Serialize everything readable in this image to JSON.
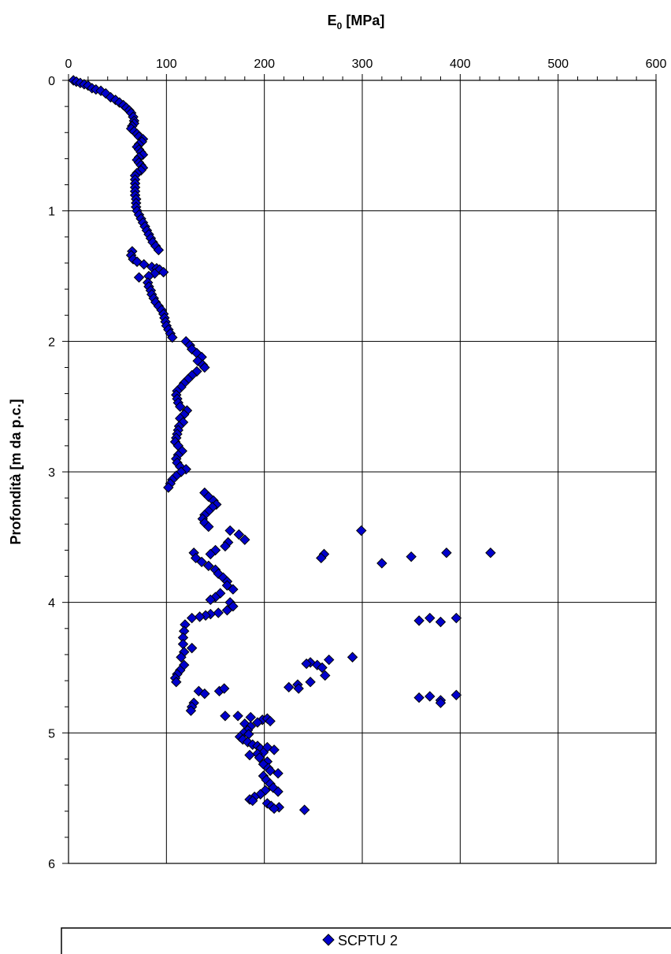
{
  "chart_data": {
    "type": "scatter",
    "title": "",
    "xlabel_main": "E",
    "xlabel_sub": "0",
    "xlabel_unit": " [MPa]",
    "ylabel": "Profondità [m da p.c.]",
    "xlim": [
      0,
      600
    ],
    "ylim": [
      0,
      6
    ],
    "y_inverted": true,
    "x_axis_position": "top",
    "x_ticks": [
      "0",
      "100",
      "200",
      "300",
      "400",
      "500",
      "600"
    ],
    "y_ticks": [
      "0",
      "1",
      "2",
      "3",
      "4",
      "5",
      "6"
    ],
    "grid": true,
    "legend_position": "bottom",
    "colors": {
      "marker_fill": "#0000cc",
      "marker_stroke": "#000000",
      "grid": "#000000"
    },
    "series": [
      {
        "name": "SCPTU 2",
        "marker": "diamond",
        "points": [
          [
            5,
            0.0
          ],
          [
            8,
            0.01
          ],
          [
            12,
            0.02
          ],
          [
            16,
            0.03
          ],
          [
            20,
            0.04
          ],
          [
            24,
            0.06
          ],
          [
            28,
            0.07
          ],
          [
            33,
            0.08
          ],
          [
            38,
            0.1
          ],
          [
            43,
            0.13
          ],
          [
            48,
            0.15
          ],
          [
            52,
            0.17
          ],
          [
            56,
            0.19
          ],
          [
            59,
            0.21
          ],
          [
            62,
            0.23
          ],
          [
            64,
            0.25
          ],
          [
            66,
            0.28
          ],
          [
            67,
            0.31
          ],
          [
            67,
            0.33
          ],
          [
            65,
            0.35
          ],
          [
            64,
            0.37
          ],
          [
            67,
            0.39
          ],
          [
            70,
            0.41
          ],
          [
            72,
            0.43
          ],
          [
            76,
            0.45
          ],
          [
            75,
            0.47
          ],
          [
            72,
            0.49
          ],
          [
            70,
            0.51
          ],
          [
            72,
            0.53
          ],
          [
            74,
            0.55
          ],
          [
            76,
            0.57
          ],
          [
            72,
            0.59
          ],
          [
            70,
            0.61
          ],
          [
            72,
            0.63
          ],
          [
            74,
            0.65
          ],
          [
            76,
            0.67
          ],
          [
            74,
            0.69
          ],
          [
            70,
            0.71
          ],
          [
            68,
            0.73
          ],
          [
            68,
            0.76
          ],
          [
            68,
            0.79
          ],
          [
            68,
            0.82
          ],
          [
            68,
            0.85
          ],
          [
            68,
            0.88
          ],
          [
            69,
            0.91
          ],
          [
            69,
            0.94
          ],
          [
            69,
            0.97
          ],
          [
            70,
            1.0
          ],
          [
            72,
            1.03
          ],
          [
            74,
            1.06
          ],
          [
            76,
            1.09
          ],
          [
            78,
            1.12
          ],
          [
            80,
            1.15
          ],
          [
            82,
            1.18
          ],
          [
            84,
            1.21
          ],
          [
            86,
            1.24
          ],
          [
            89,
            1.27
          ],
          [
            92,
            1.3
          ],
          [
            65,
            1.31
          ],
          [
            64,
            1.34
          ],
          [
            66,
            1.37
          ],
          [
            70,
            1.39
          ],
          [
            77,
            1.41
          ],
          [
            85,
            1.43
          ],
          [
            90,
            1.44
          ],
          [
            93,
            1.45
          ],
          [
            97,
            1.47
          ],
          [
            88,
            1.48
          ],
          [
            82,
            1.5
          ],
          [
            72,
            1.51
          ],
          [
            81,
            1.55
          ],
          [
            82,
            1.58
          ],
          [
            84,
            1.61
          ],
          [
            85,
            1.64
          ],
          [
            87,
            1.67
          ],
          [
            89,
            1.7
          ],
          [
            92,
            1.73
          ],
          [
            95,
            1.76
          ],
          [
            97,
            1.79
          ],
          [
            98,
            1.82
          ],
          [
            99,
            1.85
          ],
          [
            100,
            1.88
          ],
          [
            102,
            1.91
          ],
          [
            104,
            1.94
          ],
          [
            106,
            1.97
          ],
          [
            120,
            2.0
          ],
          [
            124,
            2.03
          ],
          [
            126,
            2.06
          ],
          [
            131,
            2.09
          ],
          [
            136,
            2.12
          ],
          [
            132,
            2.15
          ],
          [
            137,
            2.18
          ],
          [
            139,
            2.2
          ],
          [
            131,
            2.23
          ],
          [
            126,
            2.26
          ],
          [
            122,
            2.29
          ],
          [
            118,
            2.32
          ],
          [
            115,
            2.35
          ],
          [
            111,
            2.38
          ],
          [
            110,
            2.41
          ],
          [
            111,
            2.44
          ],
          [
            112,
            2.47
          ],
          [
            114,
            2.5
          ],
          [
            121,
            2.53
          ],
          [
            118,
            2.56
          ],
          [
            114,
            2.59
          ],
          [
            117,
            2.62
          ],
          [
            113,
            2.65
          ],
          [
            112,
            2.68
          ],
          [
            111,
            2.71
          ],
          [
            110,
            2.74
          ],
          [
            109,
            2.77
          ],
          [
            112,
            2.8
          ],
          [
            116,
            2.84
          ],
          [
            112,
            2.87
          ],
          [
            110,
            2.9
          ],
          [
            111,
            2.93
          ],
          [
            114,
            2.96
          ],
          [
            120,
            2.98
          ],
          [
            115,
            3.0
          ],
          [
            110,
            3.03
          ],
          [
            106,
            3.06
          ],
          [
            104,
            3.09
          ],
          [
            102,
            3.12
          ],
          [
            139,
            3.16
          ],
          [
            143,
            3.19
          ],
          [
            148,
            3.22
          ],
          [
            151,
            3.25
          ],
          [
            147,
            3.27
          ],
          [
            143,
            3.3
          ],
          [
            139,
            3.33
          ],
          [
            137,
            3.36
          ],
          [
            139,
            3.39
          ],
          [
            143,
            3.42
          ],
          [
            165,
            3.45
          ],
          [
            174,
            3.48
          ],
          [
            180,
            3.52
          ],
          [
            163,
            3.54
          ],
          [
            160,
            3.57
          ],
          [
            150,
            3.6
          ],
          [
            128,
            3.62
          ],
          [
            145,
            3.63
          ],
          [
            130,
            3.66
          ],
          [
            136,
            3.69
          ],
          [
            143,
            3.72
          ],
          [
            150,
            3.75
          ],
          [
            153,
            3.78
          ],
          [
            158,
            3.81
          ],
          [
            162,
            3.84
          ],
          [
            162,
            3.87
          ],
          [
            168,
            3.9
          ],
          [
            155,
            3.93
          ],
          [
            150,
            3.96
          ],
          [
            145,
            3.98
          ],
          [
            165,
            4.0
          ],
          [
            168,
            4.03
          ],
          [
            162,
            4.06
          ],
          [
            153,
            4.08
          ],
          [
            145,
            4.09
          ],
          [
            140,
            4.1
          ],
          [
            134,
            4.11
          ],
          [
            126,
            4.12
          ],
          [
            119,
            4.17
          ],
          [
            118,
            4.22
          ],
          [
            117,
            4.27
          ],
          [
            117,
            4.32
          ],
          [
            126,
            4.35
          ],
          [
            118,
            4.38
          ],
          [
            115,
            4.42
          ],
          [
            299,
            3.45
          ],
          [
            261,
            3.63
          ],
          [
            258,
            3.66
          ],
          [
            320,
            3.7
          ],
          [
            350,
            3.65
          ],
          [
            386,
            3.62
          ],
          [
            431,
            3.62
          ],
          [
            358,
            4.14
          ],
          [
            369,
            4.12
          ],
          [
            380,
            4.15
          ],
          [
            396,
            4.12
          ],
          [
            118,
            4.48
          ],
          [
            114,
            4.52
          ],
          [
            111,
            4.55
          ],
          [
            109,
            4.58
          ],
          [
            110,
            4.61
          ],
          [
            133,
            4.68
          ],
          [
            139,
            4.7
          ],
          [
            154,
            4.68
          ],
          [
            159,
            4.66
          ],
          [
            128,
            4.77
          ],
          [
            126,
            4.8
          ],
          [
            125,
            4.83
          ],
          [
            266,
            4.44
          ],
          [
            290,
            4.42
          ],
          [
            247,
            4.46
          ],
          [
            243,
            4.47
          ],
          [
            254,
            4.48
          ],
          [
            259,
            4.5
          ],
          [
            262,
            4.56
          ],
          [
            247,
            4.61
          ],
          [
            234,
            4.63
          ],
          [
            225,
            4.65
          ],
          [
            235,
            4.66
          ],
          [
            358,
            4.73
          ],
          [
            369,
            4.72
          ],
          [
            380,
            4.75
          ],
          [
            396,
            4.71
          ],
          [
            380,
            4.77
          ],
          [
            160,
            4.87
          ],
          [
            173,
            4.87
          ],
          [
            186,
            4.88
          ],
          [
            198,
            4.9
          ],
          [
            203,
            4.89
          ],
          [
            206,
            4.91
          ],
          [
            193,
            4.92
          ],
          [
            180,
            4.93
          ],
          [
            186,
            4.95
          ],
          [
            183,
            4.98
          ],
          [
            179,
            5.0
          ],
          [
            184,
            5.01
          ],
          [
            175,
            5.03
          ],
          [
            178,
            5.05
          ],
          [
            183,
            5.07
          ],
          [
            188,
            5.09
          ],
          [
            193,
            5.1
          ],
          [
            196,
            5.12
          ],
          [
            203,
            5.11
          ],
          [
            210,
            5.13
          ],
          [
            199,
            5.15
          ],
          [
            193,
            5.16
          ],
          [
            185,
            5.17
          ],
          [
            195,
            5.19
          ],
          [
            203,
            5.22
          ],
          [
            199,
            5.24
          ],
          [
            204,
            5.27
          ],
          [
            206,
            5.29
          ],
          [
            214,
            5.31
          ],
          [
            199,
            5.33
          ],
          [
            202,
            5.36
          ],
          [
            206,
            5.39
          ],
          [
            209,
            5.42
          ],
          [
            214,
            5.45
          ],
          [
            201,
            5.44
          ],
          [
            196,
            5.47
          ],
          [
            190,
            5.49
          ],
          [
            185,
            5.51
          ],
          [
            188,
            5.52
          ],
          [
            203,
            5.54
          ],
          [
            207,
            5.56
          ],
          [
            215,
            5.57
          ],
          [
            241,
            5.59
          ],
          [
            210,
            5.58
          ]
        ]
      }
    ]
  }
}
